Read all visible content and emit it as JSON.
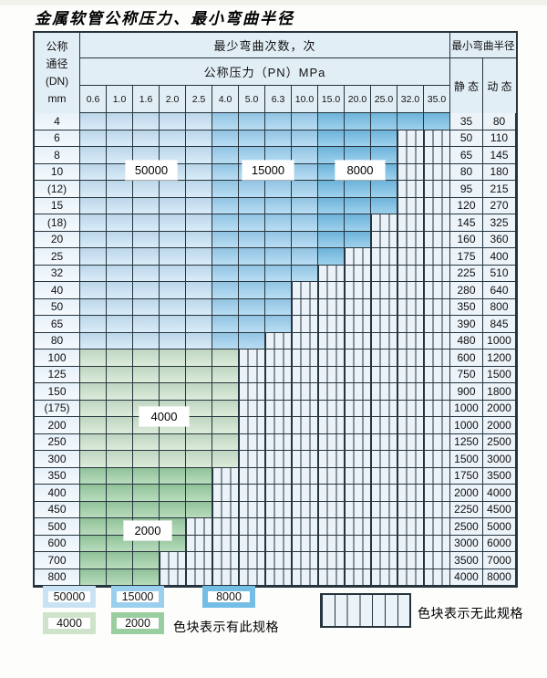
{
  "title": "金属软管公称压力、最小弯曲半径",
  "colors": {
    "blue-50000": "#c9e3f5",
    "blue-15000": "#9bcfee",
    "blue-8000": "#74bde5",
    "green-4000": "#cde3ca",
    "green-2000": "#9acd9f",
    "hatch-bg": "#ebf2f8",
    "grid": "#26343e",
    "header-bg": "#e2eef6",
    "value-col-bg": "#ecf3f9"
  },
  "table": {
    "header": {
      "dn_label_lines": [
        "公称",
        "通径",
        "(DN)",
        "mm"
      ],
      "bend_cycles_label": "最少弯曲次数，次",
      "pressure_label": "公称压力（PN）MPa",
      "radius_label": "最小弯曲半径",
      "static_label": "静 态",
      "dynamic_label": "动 态",
      "pressures": [
        "0.6",
        "1.0",
        "1.6",
        "2.0",
        "2.5",
        "4.0",
        "5.0",
        "6.3",
        "10.0",
        "15.0",
        "20.0",
        "25.0",
        "32.0",
        "35.0"
      ]
    },
    "rows": [
      {
        "dn": "4",
        "colored": 14,
        "zone": "blue",
        "static": "35",
        "dynamic": "80"
      },
      {
        "dn": "6",
        "colored": 12,
        "zone": "blue",
        "static": "50",
        "dynamic": "110"
      },
      {
        "dn": "8",
        "colored": 12,
        "zone": "blue",
        "static": "65",
        "dynamic": "145"
      },
      {
        "dn": "10",
        "colored": 12,
        "zone": "blue",
        "static": "80",
        "dynamic": "180"
      },
      {
        "dn": "(12)",
        "colored": 12,
        "zone": "blue",
        "static": "95",
        "dynamic": "215"
      },
      {
        "dn": "15",
        "colored": 12,
        "zone": "blue",
        "static": "120",
        "dynamic": "270"
      },
      {
        "dn": "(18)",
        "colored": 11,
        "zone": "blue",
        "static": "145",
        "dynamic": "325"
      },
      {
        "dn": "20",
        "colored": 11,
        "zone": "blue",
        "static": "160",
        "dynamic": "360"
      },
      {
        "dn": "25",
        "colored": 10,
        "zone": "blue",
        "static": "175",
        "dynamic": "400"
      },
      {
        "dn": "32",
        "colored": 9,
        "zone": "blue",
        "static": "225",
        "dynamic": "510"
      },
      {
        "dn": "40",
        "colored": 8,
        "zone": "blue",
        "static": "280",
        "dynamic": "640"
      },
      {
        "dn": "50",
        "colored": 8,
        "zone": "blue",
        "static": "350",
        "dynamic": "800"
      },
      {
        "dn": "65",
        "colored": 8,
        "zone": "blue",
        "static": "390",
        "dynamic": "845"
      },
      {
        "dn": "80",
        "colored": 7,
        "zone": "blue",
        "static": "480",
        "dynamic": "1000"
      },
      {
        "dn": "100",
        "colored": 6,
        "zone": "green-4000",
        "static": "600",
        "dynamic": "1200"
      },
      {
        "dn": "125",
        "colored": 6,
        "zone": "green-4000",
        "static": "750",
        "dynamic": "1500"
      },
      {
        "dn": "150",
        "colored": 6,
        "zone": "green-4000",
        "static": "900",
        "dynamic": "1800"
      },
      {
        "dn": "(175)",
        "colored": 6,
        "zone": "green-4000",
        "static": "1000",
        "dynamic": "2000"
      },
      {
        "dn": "200",
        "colored": 6,
        "zone": "green-4000",
        "static": "1000",
        "dynamic": "2000"
      },
      {
        "dn": "250",
        "colored": 6,
        "zone": "green-4000",
        "static": "1250",
        "dynamic": "2500"
      },
      {
        "dn": "300",
        "colored": 6,
        "zone": "green-4000",
        "static": "1500",
        "dynamic": "3000"
      },
      {
        "dn": "350",
        "colored": 5,
        "zone": "green-2000",
        "static": "1750",
        "dynamic": "3500"
      },
      {
        "dn": "400",
        "colored": 5,
        "zone": "green-2000",
        "static": "2000",
        "dynamic": "4000"
      },
      {
        "dn": "450",
        "colored": 5,
        "zone": "green-2000",
        "static": "2250",
        "dynamic": "4500"
      },
      {
        "dn": "500",
        "colored": 4,
        "zone": "green-2000",
        "static": "2500",
        "dynamic": "5000"
      },
      {
        "dn": "600",
        "colored": 4,
        "zone": "green-2000",
        "static": "3000",
        "dynamic": "6000"
      },
      {
        "dn": "700",
        "colored": 3,
        "zone": "green-2000",
        "static": "3500",
        "dynamic": "7000"
      },
      {
        "dn": "800",
        "colored": 3,
        "zone": "green-2000",
        "static": "4000",
        "dynamic": "8000"
      }
    ],
    "blue_zone_light_cols": 5,
    "blue_zone_medium_cols": 9
  },
  "overlays": {
    "b50000": "50000",
    "b15000": "15000",
    "b8000": "8000",
    "g4000": "4000",
    "g2000": "2000"
  },
  "legend": {
    "swatches": [
      {
        "label": "50000",
        "color_key": "blue-50000"
      },
      {
        "label": "15000",
        "color_key": "blue-15000"
      },
      {
        "label": "8000",
        "color_key": "blue-8000"
      },
      {
        "label": "4000",
        "color_key": "green-4000"
      },
      {
        "label": "2000",
        "color_key": "green-2000"
      }
    ],
    "has_spec_text": "色块表示有此规格",
    "no_spec_text": "色块表示无此规格"
  }
}
